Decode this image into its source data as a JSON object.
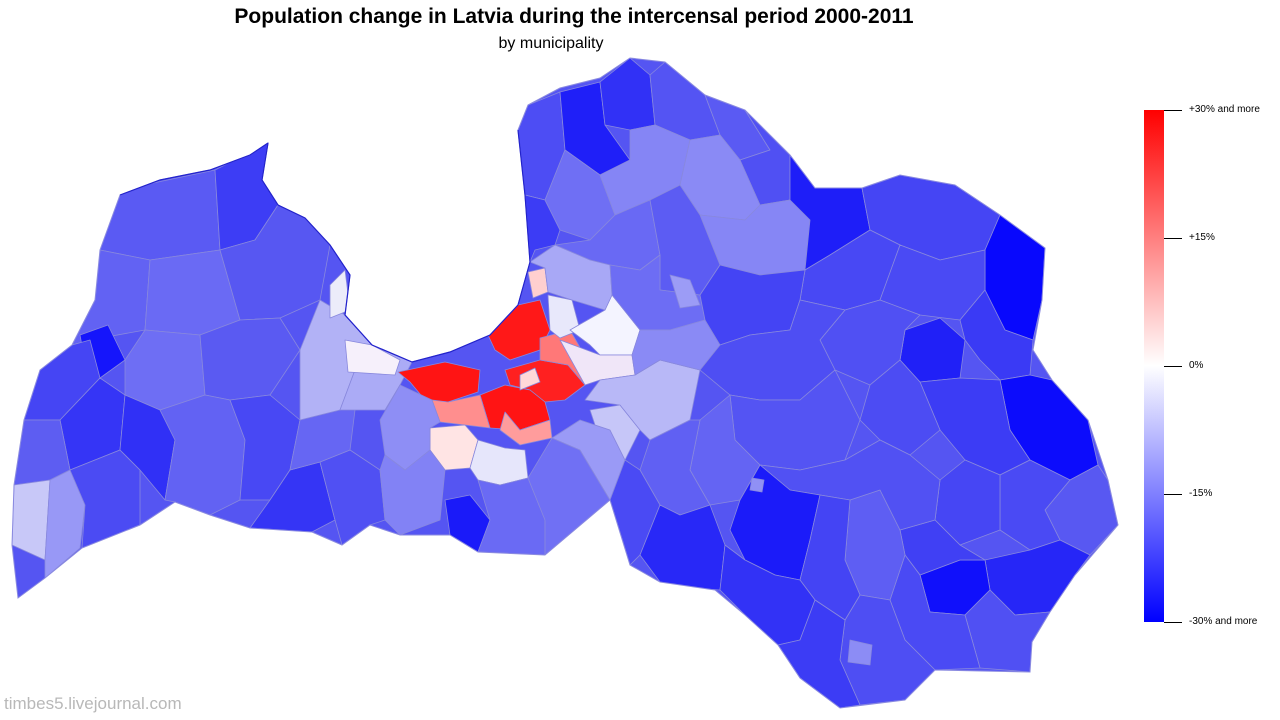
{
  "title": "Population change in Latvia during the intercensal period 2000-2011",
  "subtitle": "by municipality",
  "colors": {
    "max": "#ff0000",
    "mid": "#ffffff",
    "min": "#0000ff",
    "border": "#8888dd",
    "coast": "#2222cc"
  },
  "legend": {
    "stops": [
      {
        "label": "+30% and more",
        "value": 30
      },
      {
        "label": "+15%",
        "value": 15
      },
      {
        "label": "0%",
        "value": 0
      },
      {
        "label": "-15%",
        "value": -15
      },
      {
        "label": "-30% and more",
        "value": -30
      }
    ]
  },
  "watermark": "timbes5.livejournal.com"
}
